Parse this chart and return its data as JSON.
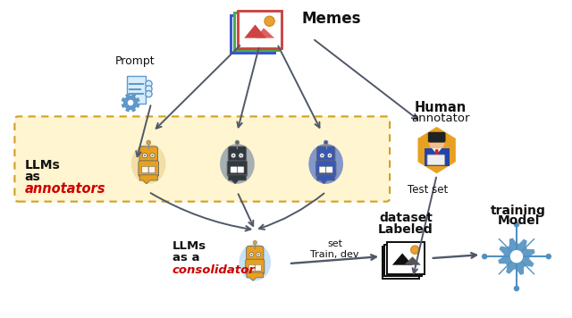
{
  "bg_color": "#ffffff",
  "yellow_box_color": "#FFF5D0",
  "yellow_box_border": "#D0A020",
  "memes_label": "Memes",
  "prompt_label": "Prompt",
  "llms_ann_1": "LLMs",
  "llms_ann_2": "as",
  "llms_ann_3": "annotators",
  "llms_con_1": "LLMs",
  "llms_con_2": "as a",
  "llms_con_3": "consolidator",
  "human_1": "Human",
  "human_2": "annotator",
  "test_set": "Test set",
  "train_dev_1": "Train, dev",
  "train_dev_2": "set",
  "labeled_1": "Labeled",
  "labeled_2": "dataset",
  "model_1": "Model",
  "model_2": "training",
  "red_color": "#CC0000",
  "dark_color": "#111111",
  "arrow_color": "#404040",
  "arrow_color2": "#505868",
  "robot1_body": "#E8A020",
  "robot1_bg": "#EDD898",
  "robot2_body": "#303840",
  "robot2_bg": "#8898A8",
  "robot3_body": "#3858B8",
  "robot3_bg": "#5878C8",
  "consol_body": "#E8A020",
  "consol_bg": "#B8D8F0",
  "gear_color": "#5090C0",
  "prompt_doc_color": "#6098C8",
  "prompt_bg": "#D8ECFC",
  "image_border_r": "#CC4444",
  "image_border_g": "#44AA44",
  "image_border_b": "#3355CC"
}
